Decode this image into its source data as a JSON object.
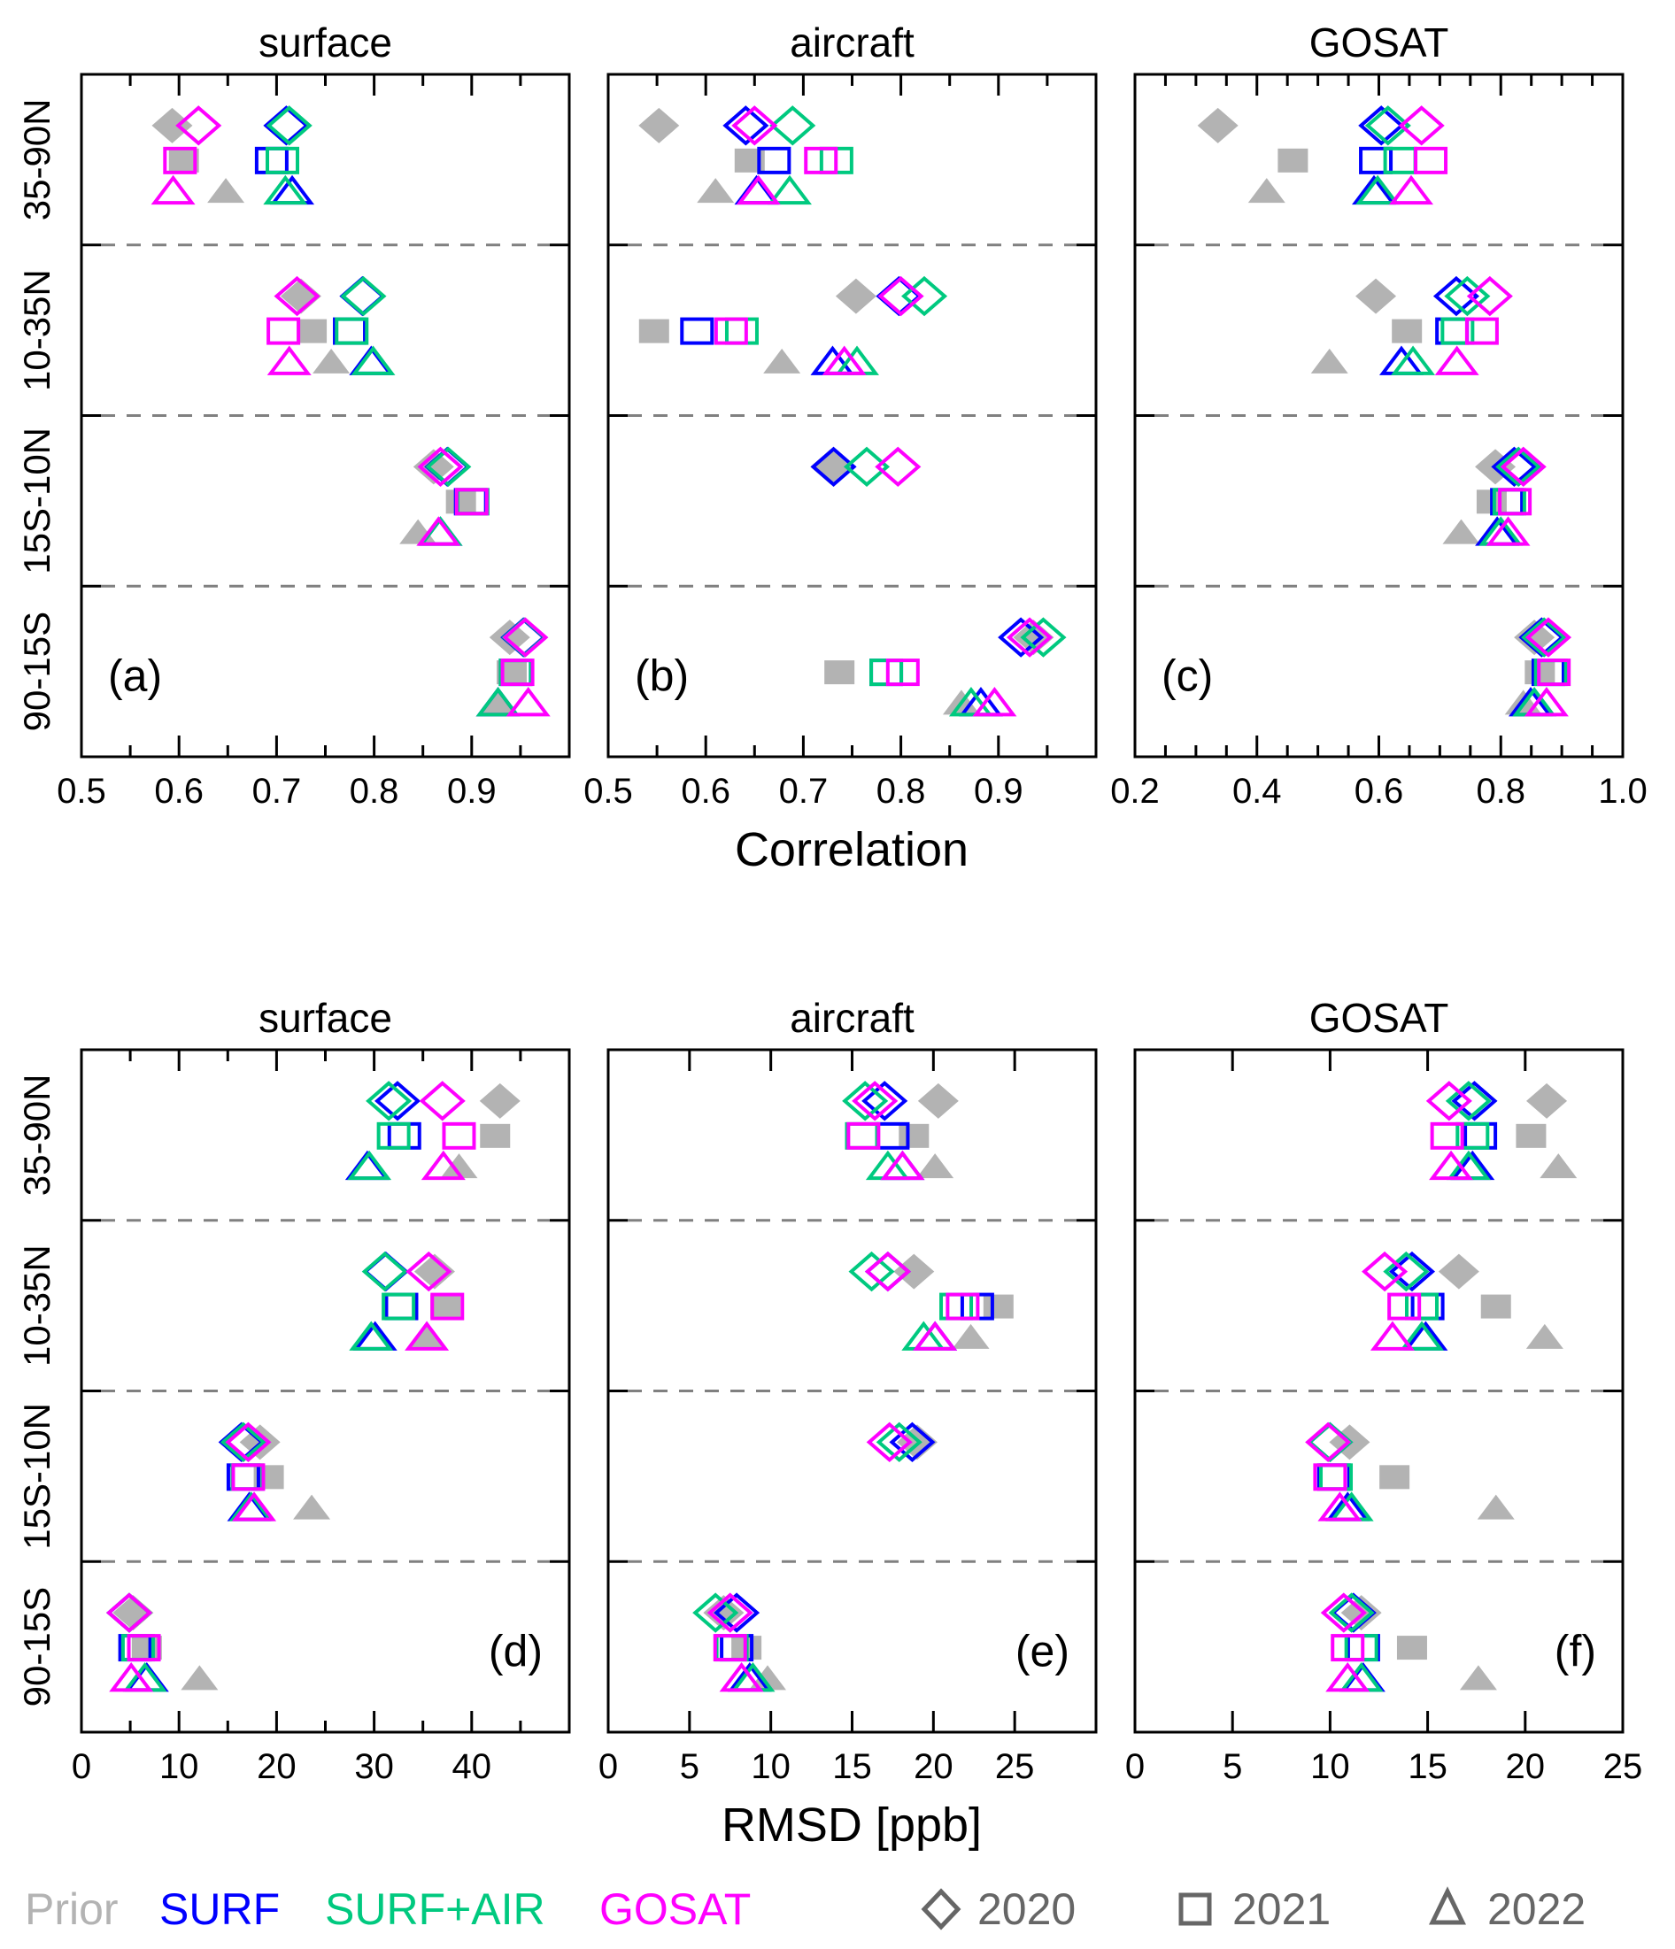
{
  "legend": {
    "series": [
      {
        "name": "Prior",
        "color": "#b3b3b3"
      },
      {
        "name": "SURF",
        "color": "#0000ff"
      },
      {
        "name": "SURF+AIR",
        "color": "#00c97f"
      },
      {
        "name": "GOSAT",
        "color": "#ff00ff"
      }
    ],
    "years": [
      {
        "label": "2020",
        "marker": "diamond"
      },
      {
        "label": "2021",
        "marker": "square"
      },
      {
        "label": "2022",
        "marker": "triangle"
      }
    ],
    "marker_color": "#666666"
  },
  "chart_data": [
    {
      "type": "scatter",
      "panel_label": "(a)",
      "title": "surface",
      "xlabel": "Correlation",
      "xlim": [
        0.5,
        1.0
      ],
      "xticks": [
        "0.5",
        "0.6",
        "0.7",
        "0.8",
        "0.9"
      ],
      "xtick_values": [
        0.5,
        0.6,
        0.7,
        0.8,
        0.9
      ],
      "minor_step": 0.05,
      "major_step": 0.1,
      "regions": [
        "35-90N",
        "10-35N",
        "15S-10N",
        "90-15S"
      ],
      "values": {
        "2020": {
          "Prior": [
            0.593,
            0.725,
            0.861,
            0.939
          ],
          "SURF": [
            0.71,
            0.788,
            0.875,
            0.953
          ],
          "SURF+AIR": [
            0.713,
            0.789,
            0.876,
            0.954
          ],
          "GOSAT": [
            0.62,
            0.721,
            0.868,
            0.955
          ]
        },
        "2021": {
          "Prior": [
            0.605,
            0.736,
            0.889,
            0.941
          ],
          "SURF": [
            0.695,
            0.775,
            0.899,
            0.945
          ],
          "SURF+AIR": [
            0.706,
            0.777,
            0.901,
            0.945
          ],
          "GOSAT": [
            0.601,
            0.707,
            0.9,
            0.947
          ]
        },
        "2022": {
          "Prior": [
            0.648,
            0.756,
            0.845,
            0.926
          ],
          "SURF": [
            0.716,
            0.797,
            0.868,
            0.927
          ],
          "SURF+AIR": [
            0.709,
            0.799,
            0.868,
            0.927
          ],
          "GOSAT": [
            0.594,
            0.713,
            0.866,
            0.958
          ]
        }
      }
    },
    {
      "type": "scatter",
      "panel_label": "(b)",
      "title": "aircraft",
      "xlabel": "Correlation",
      "xlim": [
        0.5,
        1.0
      ],
      "xticks": [
        "0.5",
        "0.6",
        "0.7",
        "0.8",
        "0.9"
      ],
      "xtick_values": [
        0.5,
        0.6,
        0.7,
        0.8,
        0.9
      ],
      "minor_step": 0.05,
      "major_step": 0.1,
      "regions": [
        "35-90N",
        "10-35N",
        "15S-10N",
        "90-15S"
      ],
      "values": {
        "2020": {
          "Prior": [
            0.552,
            0.754,
            0.728,
            0.936
          ],
          "SURF": [
            0.641,
            0.798,
            0.731,
            0.923
          ],
          "SURF+AIR": [
            0.689,
            0.824,
            0.765,
            0.946
          ],
          "GOSAT": [
            0.65,
            0.8,
            0.797,
            0.932
          ]
        },
        "2021": {
          "Prior": [
            0.645,
            0.547,
            null,
            0.737
          ],
          "SURF": [
            0.67,
            0.591,
            null,
            0.785
          ],
          "SURF+AIR": [
            0.734,
            0.637,
            null,
            0.785
          ],
          "GOSAT": [
            0.718,
            0.626,
            null,
            0.802
          ]
        },
        "2022": {
          "Prior": [
            0.61,
            0.678,
            null,
            0.862
          ],
          "SURF": [
            0.652,
            0.73,
            null,
            0.882
          ],
          "SURF+AIR": [
            0.686,
            0.755,
            null,
            0.872
          ],
          "GOSAT": [
            0.654,
            0.742,
            null,
            0.896
          ]
        }
      }
    },
    {
      "type": "scatter",
      "panel_label": "(c)",
      "title": "GOSAT",
      "xlabel": "Correlation",
      "xlim": [
        0.2,
        1.0
      ],
      "xticks": [
        "0.2",
        "0.4",
        "0.6",
        "0.8",
        "1.0"
      ],
      "xtick_values": [
        0.2,
        0.4,
        0.6,
        0.8,
        1.0
      ],
      "minor_step": 0.05,
      "major_step": 0.2,
      "regions": [
        "35-90N",
        "10-35N",
        "15S-10N",
        "90-15S"
      ],
      "values": {
        "2020": {
          "Prior": [
            0.336,
            0.595,
            0.791,
            0.855
          ],
          "SURF": [
            0.604,
            0.727,
            0.822,
            0.867
          ],
          "SURF+AIR": [
            0.615,
            0.745,
            0.829,
            0.871
          ],
          "GOSAT": [
            0.67,
            0.782,
            0.837,
            0.878
          ]
        },
        "2021": {
          "Prior": [
            0.459,
            0.646,
            0.785,
            0.864
          ],
          "SURF": [
            0.595,
            0.72,
            0.81,
            0.878
          ],
          "SURF+AIR": [
            0.635,
            0.729,
            0.814,
            0.882
          ],
          "GOSAT": [
            0.685,
            0.769,
            0.823,
            0.887
          ]
        },
        "2022": {
          "Prior": [
            0.416,
            0.519,
            0.735,
            0.837
          ],
          "SURF": [
            0.592,
            0.637,
            0.794,
            0.849
          ],
          "SURF+AIR": [
            0.598,
            0.656,
            0.8,
            0.855
          ],
          "GOSAT": [
            0.653,
            0.728,
            0.812,
            0.875
          ]
        }
      }
    },
    {
      "type": "scatter",
      "panel_label": "(d)",
      "title": "surface",
      "xlabel": "RMSD [ppb]",
      "xlim": [
        0,
        50
      ],
      "xticks": [
        "0",
        "10",
        "20",
        "30",
        "40"
      ],
      "xtick_values": [
        0,
        10,
        20,
        30,
        40
      ],
      "minor_step": 5,
      "major_step": 10,
      "regions": [
        "35-90N",
        "10-35N",
        "15S-10N",
        "90-15S"
      ],
      "values": {
        "2020": {
          "Prior": [
            42.9,
            36.2,
            18.3,
            5.3
          ],
          "SURF": [
            32.4,
            31.2,
            16.4,
            4.9
          ],
          "SURF+AIR": [
            31.5,
            31.1,
            16.6,
            4.9
          ],
          "GOSAT": [
            37.0,
            35.6,
            17.1,
            4.9
          ]
        },
        "2021": {
          "Prior": [
            42.4,
            37.3,
            19.2,
            6.7
          ],
          "SURF": [
            33.1,
            32.8,
            16.6,
            5.5
          ],
          "SURF+AIR": [
            32.0,
            32.5,
            17.0,
            5.8
          ],
          "GOSAT": [
            38.7,
            37.5,
            17.1,
            6.4
          ]
        },
        "2022": {
          "Prior": [
            38.7,
            35.4,
            23.6,
            12.1
          ],
          "SURF": [
            29.3,
            30.1,
            17.2,
            6.7
          ],
          "SURF+AIR": [
            29.5,
            29.7,
            17.4,
            6.5
          ],
          "GOSAT": [
            37.1,
            35.4,
            17.7,
            5.1
          ]
        }
      }
    },
    {
      "type": "scatter",
      "panel_label": "(e)",
      "title": "aircraft",
      "xlabel": "RMSD [ppb]",
      "xlim": [
        0,
        30
      ],
      "xticks": [
        "0",
        "5",
        "10",
        "15",
        "20",
        "25"
      ],
      "xtick_values": [
        0,
        5,
        10,
        15,
        20,
        25
      ],
      "minor_step": 5,
      "major_step": 5,
      "regions": [
        "35-90N",
        "10-35N",
        "15S-10N",
        "90-15S"
      ],
      "values": {
        "2020": {
          "Prior": [
            20.3,
            18.8,
            19.0,
            7.1
          ],
          "SURF": [
            17.0,
            17.2,
            18.7,
            7.9
          ],
          "SURF+AIR": [
            15.8,
            16.2,
            17.9,
            6.6
          ],
          "GOSAT": [
            16.4,
            17.2,
            17.3,
            7.5
          ]
        },
        "2021": {
          "Prior": [
            18.8,
            24.0,
            null,
            8.5
          ],
          "SURF": [
            17.5,
            22.7,
            null,
            7.9
          ],
          "SURF+AIR": [
            15.6,
            21.4,
            null,
            7.6
          ],
          "GOSAT": [
            15.7,
            21.8,
            null,
            7.5
          ]
        },
        "2022": {
          "Prior": [
            20.1,
            22.3,
            null,
            9.8
          ],
          "SURF": [
            18.1,
            20.1,
            null,
            8.7
          ],
          "SURF+AIR": [
            17.2,
            19.4,
            null,
            8.9
          ],
          "GOSAT": [
            18.1,
            20.1,
            null,
            8.2
          ]
        }
      }
    },
    {
      "type": "scatter",
      "panel_label": "(f)",
      "title": "GOSAT",
      "xlabel": "RMSD [ppb]",
      "xlim": [
        0,
        25
      ],
      "xticks": [
        "0",
        "5",
        "10",
        "15",
        "20",
        "25"
      ],
      "xtick_values": [
        0,
        5,
        10,
        15,
        20,
        25
      ],
      "minor_step": 5,
      "major_step": 5,
      "regions": [
        "35-90N",
        "10-35N",
        "15S-10N",
        "90-15S"
      ],
      "values": {
        "2020": {
          "Prior": [
            21.1,
            16.6,
            11.0,
            11.6
          ],
          "SURF": [
            17.4,
            14.2,
            10.0,
            11.2
          ],
          "SURF+AIR": [
            17.1,
            13.9,
            10.0,
            11.1
          ],
          "GOSAT": [
            16.1,
            12.8,
            9.9,
            10.7
          ]
        },
        "2021": {
          "Prior": [
            20.3,
            18.5,
            13.3,
            14.2
          ],
          "SURF": [
            17.7,
            15.0,
            10.2,
            11.7
          ],
          "SURF+AIR": [
            17.3,
            14.7,
            10.3,
            11.6
          ],
          "GOSAT": [
            16.0,
            13.8,
            10.0,
            10.9
          ]
        },
        "2022": {
          "Prior": [
            21.7,
            21.0,
            18.5,
            17.6
          ],
          "SURF": [
            17.3,
            14.9,
            10.9,
            11.7
          ],
          "SURF+AIR": [
            17.1,
            14.7,
            11.1,
            11.6
          ],
          "GOSAT": [
            16.2,
            13.2,
            10.5,
            10.9
          ]
        }
      }
    }
  ],
  "axis_labels": {
    "top": "Correlation",
    "bottom": "RMSD [ppb]"
  }
}
